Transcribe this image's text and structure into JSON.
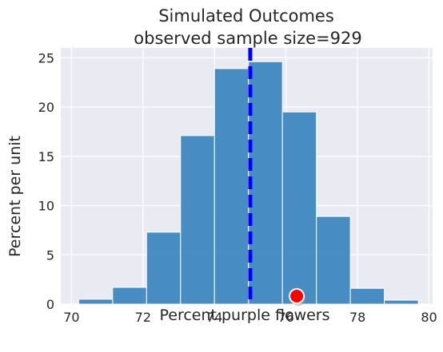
{
  "chart_data": {
    "type": "bar",
    "subtype": "histogram",
    "title": "Simulated Outcomes",
    "subtitle": "observed sample size=929",
    "xlabel": "Percent purple flowers",
    "ylabel": "Percent per unit",
    "xlim": [
      69.7,
      80.1
    ],
    "ylim": [
      0,
      26
    ],
    "x_ticks": [
      70,
      72,
      74,
      76,
      78,
      80
    ],
    "y_ticks": [
      0,
      5,
      10,
      15,
      20,
      25
    ],
    "grid": true,
    "bins": [
      {
        "start": 70.2,
        "end": 71.15,
        "value": 0.5
      },
      {
        "start": 71.15,
        "end": 72.1,
        "value": 1.7
      },
      {
        "start": 72.1,
        "end": 73.05,
        "value": 7.3
      },
      {
        "start": 73.05,
        "end": 74.0,
        "value": 17.1
      },
      {
        "start": 74.0,
        "end": 74.95,
        "value": 23.9
      },
      {
        "start": 74.95,
        "end": 75.9,
        "value": 24.6
      },
      {
        "start": 75.9,
        "end": 76.85,
        "value": 19.5
      },
      {
        "start": 76.85,
        "end": 77.8,
        "value": 8.9
      },
      {
        "start": 77.8,
        "end": 78.75,
        "value": 1.6
      },
      {
        "start": 78.75,
        "end": 79.7,
        "value": 0.4
      }
    ],
    "vertical_line": {
      "x": 75,
      "style": "dashed",
      "color": "#0000ff"
    },
    "marker": {
      "x": 76.3,
      "y": 0,
      "color": "#ff0000"
    },
    "colors": {
      "bar": "#3a85bf",
      "background": "#eaeaf2",
      "grid": "#ffffff"
    }
  }
}
